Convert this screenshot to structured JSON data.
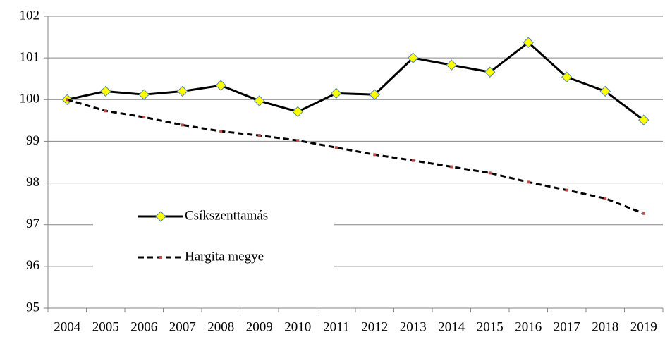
{
  "chart_data": {
    "type": "line",
    "categories": [
      "2004",
      "2005",
      "2006",
      "2007",
      "2008",
      "2009",
      "2010",
      "2011",
      "2012",
      "2013",
      "2014",
      "2015",
      "2016",
      "2017",
      "2018",
      "2019"
    ],
    "series": [
      {
        "name": "Csíkszenttamás",
        "color": "#000000",
        "marker": "diamond",
        "marker_color": "#ffff00",
        "line_style": "solid",
        "values": [
          100.0,
          100.2,
          100.12,
          100.2,
          100.34,
          99.97,
          99.71,
          100.15,
          100.12,
          101.0,
          100.83,
          100.66,
          101.37,
          100.54,
          100.2,
          99.51
        ]
      },
      {
        "name": "Hargita megye",
        "color": "#000000",
        "marker": "square",
        "marker_color": "#c0504d",
        "line_style": "dashed",
        "values": [
          100.0,
          99.73,
          99.58,
          99.39,
          99.24,
          99.14,
          99.02,
          98.85,
          98.68,
          98.54,
          98.39,
          98.24,
          98.02,
          97.83,
          97.63,
          97.27
        ]
      }
    ],
    "ylim": [
      95,
      102
    ],
    "yticks": [
      95,
      96,
      97,
      98,
      99,
      100,
      101,
      102
    ],
    "grid": true,
    "legend": "left"
  }
}
